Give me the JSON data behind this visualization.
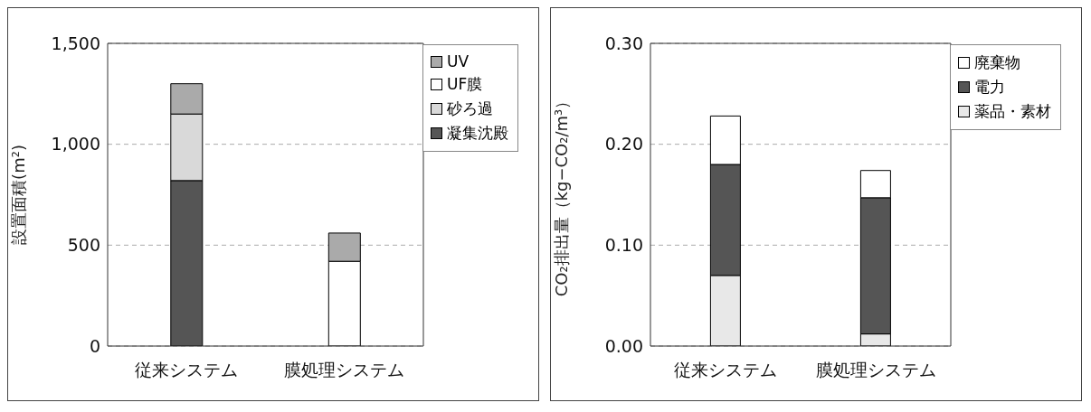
{
  "chart_data": [
    {
      "type": "bar",
      "stacked": true,
      "ylabel": "設置面積(m²)",
      "categories": [
        "従来システム",
        "膜処理システム"
      ],
      "series": [
        {
          "name": "凝集沈殿",
          "color": "#555555",
          "values": [
            820,
            0
          ]
        },
        {
          "name": "砂ろ過",
          "color": "#d9d9d9",
          "values": [
            330,
            0
          ]
        },
        {
          "name": "UF膜",
          "color": "#ffffff",
          "values": [
            0,
            420
          ]
        },
        {
          "name": "UV",
          "color": "#aaaaaa",
          "values": [
            150,
            140
          ]
        }
      ],
      "ylim": [
        0,
        1500
      ],
      "yticks": [
        0,
        {
          "value": 500,
          "label": "500"
        },
        {
          "value": 1000,
          "label": "1,000"
        },
        {
          "value": 1500,
          "label": "1,500"
        }
      ],
      "grid": "y",
      "legend": "top right"
    },
    {
      "type": "bar",
      "stacked": true,
      "ylabel": "CO₂排出量（kg−CO₂/m³）",
      "categories": [
        "従来システム",
        "膜処理システム"
      ],
      "series": [
        {
          "name": "薬品・素材",
          "color": "#e8e8e8",
          "values": [
            0.07,
            0.012
          ]
        },
        {
          "name": "電力",
          "color": "#555555",
          "values": [
            0.11,
            0.135
          ]
        },
        {
          "name": "廃棄物",
          "color": "#ffffff",
          "values": [
            0.048,
            0.027
          ]
        }
      ],
      "ylim": [
        0,
        0.3
      ],
      "yticks": [
        {
          "value": 0,
          "label": "0.00"
        },
        {
          "value": 0.1,
          "label": "0.10"
        },
        {
          "value": 0.2,
          "label": "0.20"
        },
        {
          "value": 0.3,
          "label": "0.30"
        }
      ],
      "grid": "y",
      "legend": "top right"
    }
  ]
}
